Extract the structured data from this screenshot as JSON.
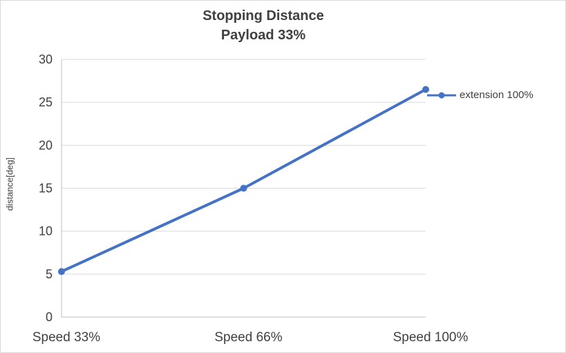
{
  "chart_data": {
    "type": "line",
    "title": "Stopping Distance",
    "subtitle": "Payload 33%",
    "categories": [
      "Speed 33%",
      "Speed 66%",
      "Speed 100%"
    ],
    "series": [
      {
        "name": "extension 100%",
        "values": [
          5.3,
          15,
          26.5
        ],
        "color": "#4472c4"
      }
    ],
    "xlabel": "",
    "ylabel": "distance[deg]",
    "ylim": [
      0,
      30
    ],
    "ytick_step": 5,
    "yticks": [
      0,
      5,
      10,
      15,
      20,
      25,
      30
    ],
    "grid": true,
    "legend_position": "right",
    "colors": {
      "grid": "#d9d9d9",
      "axis": "#bfbfbf",
      "text": "#404040"
    }
  }
}
